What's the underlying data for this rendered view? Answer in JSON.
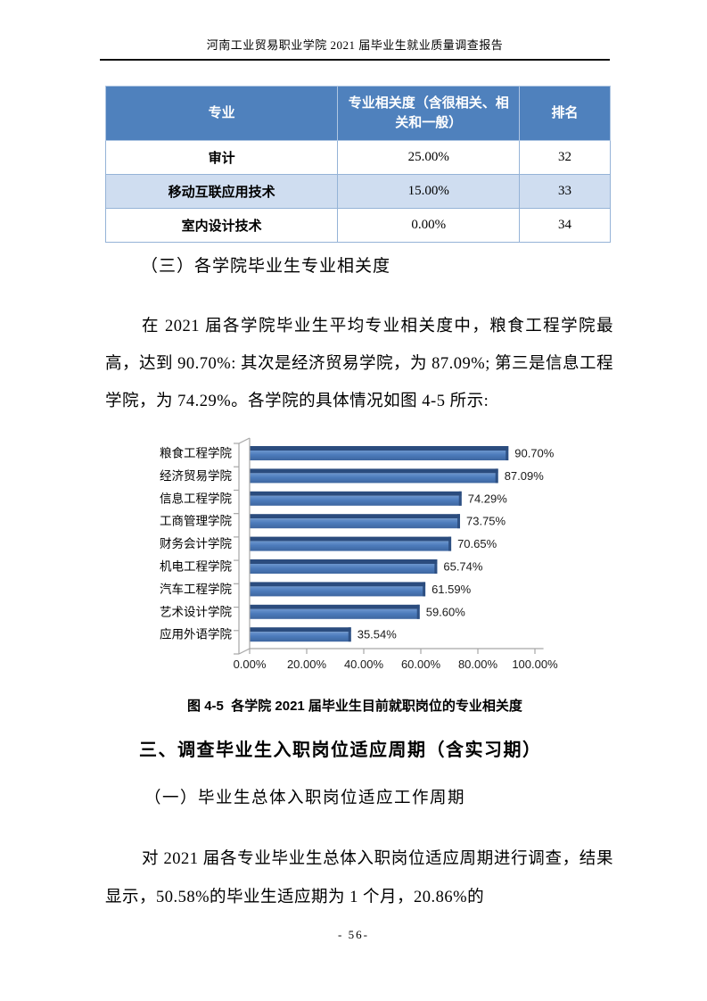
{
  "page": {
    "running_head": "河南工业贸易职业学院 2021 届毕业生就业质量调查报告",
    "page_number": "- 56-"
  },
  "table": {
    "headers": [
      "专业",
      "专业相关度（含很相关、相关和一般）",
      "排名"
    ],
    "rows": [
      {
        "major": "审计",
        "relevance": "25.00%",
        "rank": "32"
      },
      {
        "major": "移动互联应用技术",
        "relevance": "15.00%",
        "rank": "33"
      },
      {
        "major": "室内设计技术",
        "relevance": "0.00%",
        "rank": "34"
      }
    ]
  },
  "sections": {
    "heading_3": "（三）各学院毕业生专业相关度",
    "para_1": "在 2021 届各学院毕业生平均专业相关度中，粮食工程学院最高，达到 90.70%: 其次是经济贸易学院，为 87.09%; 第三是信息工程学院，为 74.29%。各学院的具体情况如图 4-5 所示:",
    "figure_caption": "图 4-5  各学院 2021 届毕业生目前就职岗位的专业相关度",
    "heading_major": "三、调查毕业生入职岗位适应周期（含实习期）",
    "heading_sub": "（一）毕业生总体入职岗位适应工作周期",
    "para_2": "对 2021 届各专业毕业生总体入职岗位适应周期进行调查，结果显示，50.58%的毕业生适应期为 1 个月，20.86%的"
  },
  "chart_data": {
    "type": "bar",
    "orientation": "horizontal",
    "categories": [
      "粮食工程学院",
      "经济贸易学院",
      "信息工程学院",
      "工商管理学院",
      "财务会计学院",
      "机电工程学院",
      "汽车工程学院",
      "艺术设计学院",
      "应用外语学院"
    ],
    "values": [
      90.7,
      87.09,
      74.29,
      73.75,
      70.65,
      65.74,
      61.59,
      59.6,
      35.54
    ],
    "data_labels": [
      "90.70%",
      "87.09%",
      "74.29%",
      "73.75%",
      "70.65%",
      "65.74%",
      "61.59%",
      "59.60%",
      "35.54%"
    ],
    "x_ticks": [
      "0.00%",
      "20.00%",
      "40.00%",
      "60.00%",
      "80.00%",
      "100.00%"
    ],
    "xlim": [
      0,
      100
    ],
    "grid": false,
    "legend": false,
    "title": ""
  },
  "colors": {
    "table_header_bg": "#4F81BD",
    "table_band_bg": "#CFDDF0",
    "table_border": "#95B3D7",
    "bar_body": "#4C7BBB",
    "bar_edge": "#2B4C7E",
    "axis": "#A6A6A6"
  }
}
